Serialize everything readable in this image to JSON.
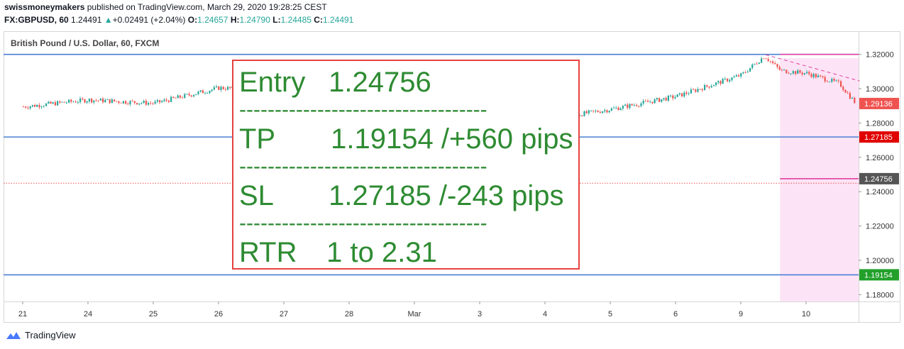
{
  "header": {
    "line1_author": "swissmoneymakers",
    "line1_rest": "published on TradingView.com, March 29, 2020 19:28:25 CEST",
    "symbol": "FX:GBPUSD, 60",
    "last": "1.24491",
    "change": "+0.02491 (+2.04%)",
    "o_label": "O:",
    "o": "1.24657",
    "h_label": "H:",
    "h": "1.24790",
    "l_label": "L:",
    "l": "1.24485",
    "c_label": "C:",
    "c": "1.24491"
  },
  "chart_title": "British Pound / U.S. Dollar, 60, FXCM",
  "trade_box": {
    "entry_label": "Entry",
    "entry_value": "1.24756",
    "dashes": "-----------------------------------",
    "tp_label": "TP",
    "tp_value": "1.19154 /+560 pips",
    "sl_label": "SL",
    "sl_value": "1.27185 /-243 pips",
    "rtr_label": "RTR",
    "rtr_value": "1 to 2.31"
  },
  "footer": {
    "brand": "TradingView"
  },
  "colors": {
    "up": "#26a69a",
    "down": "#ef5350",
    "hline": "#4a7fd4",
    "entry_line": "#e040a0",
    "zone": "#fce4f6",
    "box_border": "#e5423f",
    "box_text": "#2e8b32"
  },
  "chart_data": {
    "type": "candlestick",
    "title": "British Pound / U.S. Dollar, 60, FXCM",
    "x_ticks": [
      "21",
      "24",
      "25",
      "26",
      "27",
      "28",
      "Mar",
      "3",
      "4",
      "5",
      "6",
      "9",
      "10"
    ],
    "y_ticks": [
      "1.32000",
      "1.30000",
      "1.28000",
      "1.26000",
      "1.24000",
      "1.22000",
      "1.20000",
      "1.18000"
    ],
    "ylim": [
      1.176,
      1.3335
    ],
    "price_labels": [
      {
        "value": 1.29136,
        "text": "1.29136",
        "color": "#ef5350"
      },
      {
        "value": 1.27185,
        "text": "1.27185",
        "color": "#e00000"
      },
      {
        "value": 1.24756,
        "text": "1.24756",
        "color": "#555555"
      },
      {
        "value": 1.19154,
        "text": "1.19154",
        "color": "#22a02a"
      }
    ],
    "horizontal_levels": [
      1.32,
      1.27185,
      1.19154
    ],
    "entry_level": 1.24756,
    "current_price_line": 1.24491,
    "series": [
      {
        "day_index": 0,
        "close": 1.2895
      },
      {
        "day_index": 1,
        "close": 1.2935
      },
      {
        "day_index": 2,
        "close": 1.2915
      },
      {
        "day_index": 3,
        "close": 1.3005
      },
      {
        "day_index": 4,
        "close": 1.2985
      },
      {
        "day_index": 5,
        "close": 1.283
      },
      {
        "day_index": 6,
        "close": 1.28
      },
      {
        "day_index": 7,
        "close": 1.279
      },
      {
        "day_index": 8,
        "close": 1.282
      },
      {
        "day_index": 9,
        "close": 1.288
      },
      {
        "day_index": 10,
        "close": 1.2955
      },
      {
        "day_index": 11,
        "close": 1.308
      },
      {
        "day_index": 11.35,
        "close": 1.319
      },
      {
        "day_index": 11.6,
        "close": 1.3105
      },
      {
        "day_index": 12,
        "close": 1.309
      },
      {
        "day_index": 12.5,
        "close": 1.303
      },
      {
        "day_index": 12.75,
        "close": 1.2914
      }
    ]
  }
}
